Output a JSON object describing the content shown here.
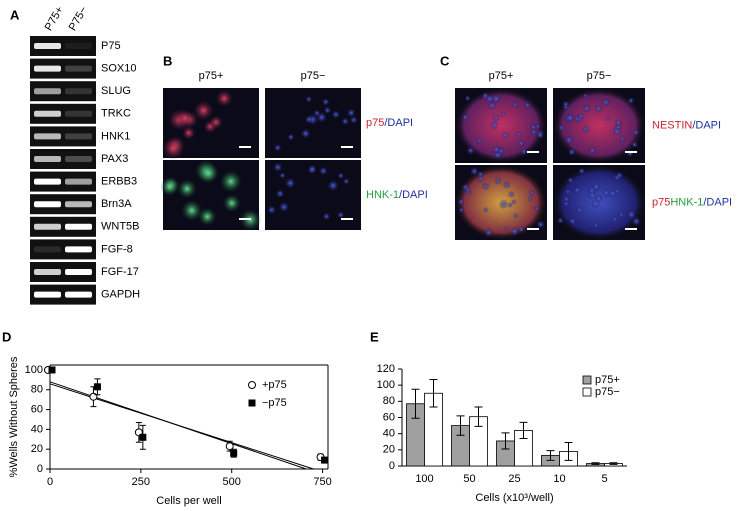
{
  "panels": {
    "a": "A",
    "b": "B",
    "c": "C",
    "d": "D",
    "e": "E"
  },
  "panel_a": {
    "columns": [
      "P75+",
      "P75−"
    ],
    "genes": [
      "P75",
      "SOX10",
      "SLUG",
      "TRKC",
      "HNK1",
      "PAX3",
      "ERBB3",
      "Brn3A",
      "WNT5B",
      "FGF-8",
      "FGF-17",
      "GAPDH"
    ]
  },
  "panel_b": {
    "columns": [
      "p75+",
      "p75−"
    ],
    "rows": [
      [
        "p75",
        "/DAPI"
      ],
      [
        "HNK-1",
        "/DAPI"
      ]
    ]
  },
  "panel_c": {
    "columns": [
      "p75+",
      "p75−"
    ],
    "rows": [
      [
        "NESTIN",
        "/DAPI"
      ],
      [
        "p75",
        "HNK-1",
        "/DAPI"
      ]
    ]
  },
  "chart_data": [
    {
      "type": "scatter",
      "xlabel": "Cells per well",
      "ylabel": "%Wells Without Spheres",
      "xlim": [
        0,
        765
      ],
      "ylim": [
        0,
        105
      ],
      "xticks": [
        0,
        250,
        500,
        750
      ],
      "yticks": [
        0,
        20,
        40,
        60,
        80,
        100
      ],
      "legend": "upper right",
      "series": [
        {
          "name": "+p75",
          "marker": "open-circle",
          "color": "#000000",
          "x": [
            0,
            125,
            250,
            500,
            750
          ],
          "values": [
            100,
            73,
            37,
            23,
            12
          ],
          "errors": [
            0,
            10,
            10,
            5,
            3
          ]
        },
        {
          "name": "−p75",
          "marker": "filled-square",
          "color": "#000000",
          "x": [
            0,
            125,
            250,
            500,
            750
          ],
          "values": [
            100,
            83,
            32,
            16,
            9
          ],
          "errors": [
            0,
            8,
            12,
            4,
            2
          ]
        }
      ],
      "fit_lines": [
        {
          "x": [
            0,
            705
          ],
          "values": [
            88,
            0
          ]
        },
        {
          "x": [
            0,
            725
          ],
          "values": [
            86,
            0
          ]
        }
      ]
    },
    {
      "type": "bar",
      "xlabel": "Cells (x10³/well)",
      "categories": [
        "100",
        "50",
        "25",
        "10",
        "5"
      ],
      "ylim": [
        0,
        120
      ],
      "yticks": [
        0,
        20,
        40,
        60,
        80,
        100,
        120
      ],
      "legend": "upper right",
      "series": [
        {
          "name": "p75+",
          "color": "#a0a0a0",
          "values": [
            77,
            50,
            31,
            13,
            3
          ],
          "errors": [
            18,
            12,
            10,
            6,
            1
          ]
        },
        {
          "name": "p75−",
          "color": "#ffffff",
          "values": [
            90,
            61,
            44,
            18,
            3
          ],
          "errors": [
            17,
            12,
            10,
            11,
            1
          ]
        }
      ]
    }
  ]
}
